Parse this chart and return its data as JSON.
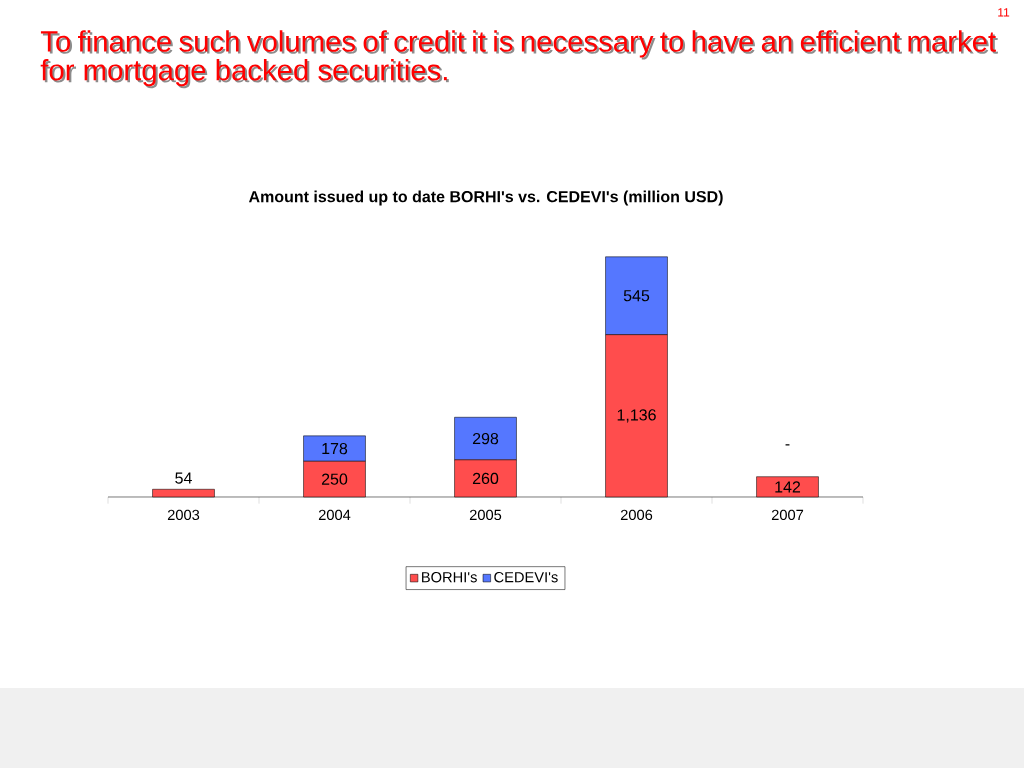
{
  "chart_data": {
    "type": "bar",
    "title": "To finance such volumes of credit it is necessary to have an efficient market for mortgage backed securities.",
    "subtitle": "Amount issued up to date BORHI's vs. CEDEVI's (million USD)",
    "annotations": [
      "11"
    ],
    "categories": [
      "2003",
      "2004",
      "2005",
      "2006",
      "2007"
    ],
    "stacked": true,
    "legend": "bottom",
    "series": [
      {
        "name": "BORHI's",
        "color": "#ff4d4d",
        "values": [
          54,
          250,
          260,
          1136,
          142
        ],
        "value_labels": [
          "54",
          "250",
          "260",
          "1,136",
          "142"
        ]
      },
      {
        "name": "CEDEVI's",
        "color": "#5577ff",
        "values": [
          null,
          178,
          298,
          545,
          0
        ],
        "value_labels": [
          null,
          "178",
          "298",
          "545",
          "-"
        ]
      }
    ]
  }
}
